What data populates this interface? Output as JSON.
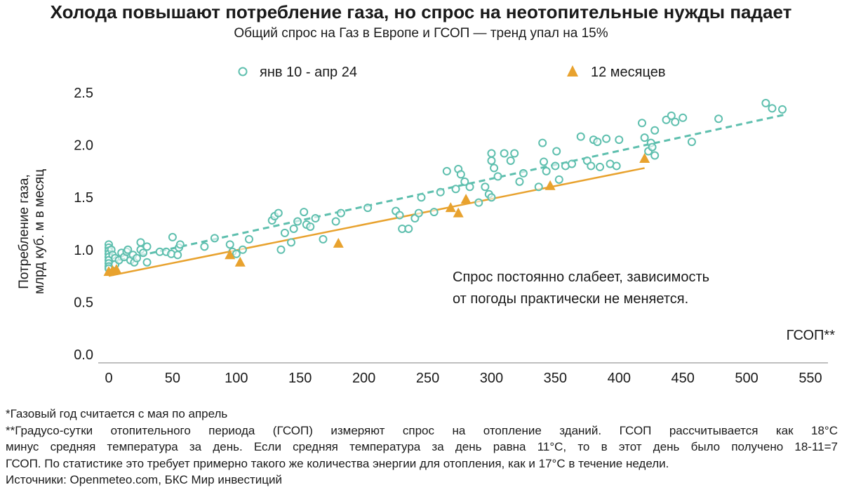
{
  "title": "Холода повышают потребление газа, но спрос на неотопительные нужды падает",
  "subtitle": "Общий спрос на Газ в Европе и ГСОП — тренд упал на 15%",
  "footnotes": {
    "line1": "*Газовый год считается с мая по апрель",
    "line2": "**Градусо-сутки отопительного периода (ГСОП) измеряют спрос на отопление зданий. ГСОП рассчитывается как 18°C",
    "line3": "минус средняя температура за день. Если средняя температура за день равна 11°C, то в этот день было получено 18-11=7",
    "line4": "ГСОП. По статистике это требует примерно такого же количества энергии для отопления, как и 17°C в течение недели.",
    "line5": "Источники: Openmeteo.com, БКС Мир инвестиций"
  },
  "colors": {
    "teal": "#5ebfae",
    "orange": "#e8a22e",
    "axis": "#bfbfbf",
    "text": "#1a1a1a"
  },
  "chart_data": {
    "type": "scatter",
    "xlabel": "ГСОП**",
    "ylabel_line1": "Потребление газа,",
    "ylabel_line2": "млрд куб. м в месяц",
    "xlim": [
      0,
      550
    ],
    "ylim": [
      0,
      2.5
    ],
    "x_ticks": [
      0,
      50,
      100,
      150,
      200,
      250,
      300,
      350,
      400,
      450,
      500,
      550
    ],
    "y_ticks": [
      0.0,
      0.5,
      1.0,
      1.5,
      2.0,
      2.5
    ],
    "y_tick_labels": [
      "0.0",
      "0.5",
      "1.0",
      "1.5",
      "2.0",
      "2.5"
    ],
    "grid": false,
    "legend_position": "top",
    "annotation_line1": "Спрос постоянно слабеет, зависимость",
    "annotation_line2": "от погоды практически не меняется.",
    "series": [
      {
        "name": "янв 10 - апр 24",
        "marker": "open-circle",
        "color": "#5ebfae",
        "points": [
          [
            0,
            1.05
          ],
          [
            0,
            1.02
          ],
          [
            0,
            0.99
          ],
          [
            0,
            0.96
          ],
          [
            0,
            0.93
          ],
          [
            0,
            0.9
          ],
          [
            0,
            0.87
          ],
          [
            0,
            0.84
          ],
          [
            0,
            0.82
          ],
          [
            2,
            1.0
          ],
          [
            3,
            0.95
          ],
          [
            5,
            0.92
          ],
          [
            5,
            0.86
          ],
          [
            8,
            0.9
          ],
          [
            10,
            0.97
          ],
          [
            12,
            0.93
          ],
          [
            14,
            0.98
          ],
          [
            15,
            1.0
          ],
          [
            17,
            0.9
          ],
          [
            19,
            0.95
          ],
          [
            20,
            0.88
          ],
          [
            22,
            0.92
          ],
          [
            25,
            1.07
          ],
          [
            25,
            1.0
          ],
          [
            27,
            0.97
          ],
          [
            30,
            1.03
          ],
          [
            30,
            0.88
          ],
          [
            40,
            0.98
          ],
          [
            45,
            0.98
          ],
          [
            49,
            0.96
          ],
          [
            50,
            1.12
          ],
          [
            54,
            0.95
          ],
          [
            55,
            1.02
          ],
          [
            56,
            1.05
          ],
          [
            75,
            1.03
          ],
          [
            83,
            1.11
          ],
          [
            95,
            1.05
          ],
          [
            97,
            0.98
          ],
          [
            100,
            0.96
          ],
          [
            105,
            1.0
          ],
          [
            110,
            1.1
          ],
          [
            128,
            1.28
          ],
          [
            130,
            1.32
          ],
          [
            133,
            1.35
          ],
          [
            135,
            1.0
          ],
          [
            138,
            1.16
          ],
          [
            143,
            1.07
          ],
          [
            145,
            1.2
          ],
          [
            148,
            1.27
          ],
          [
            153,
            1.36
          ],
          [
            155,
            1.24
          ],
          [
            158,
            1.22
          ],
          [
            162,
            1.3
          ],
          [
            168,
            1.1
          ],
          [
            178,
            1.27
          ],
          [
            182,
            1.35
          ],
          [
            203,
            1.4
          ],
          [
            225,
            1.37
          ],
          [
            228,
            1.33
          ],
          [
            230,
            1.2
          ],
          [
            235,
            1.2
          ],
          [
            240,
            1.3
          ],
          [
            243,
            1.35
          ],
          [
            245,
            1.5
          ],
          [
            255,
            1.36
          ],
          [
            260,
            1.55
          ],
          [
            265,
            1.75
          ],
          [
            272,
            1.58
          ],
          [
            274,
            1.77
          ],
          [
            276,
            1.72
          ],
          [
            279,
            1.65
          ],
          [
            283,
            1.6
          ],
          [
            290,
            1.45
          ],
          [
            295,
            1.6
          ],
          [
            298,
            1.53
          ],
          [
            300,
            1.5
          ],
          [
            300,
            1.85
          ],
          [
            300,
            1.92
          ],
          [
            302,
            1.78
          ],
          [
            305,
            1.7
          ],
          [
            310,
            1.92
          ],
          [
            315,
            1.85
          ],
          [
            318,
            1.92
          ],
          [
            322,
            1.65
          ],
          [
            325,
            1.73
          ],
          [
            337,
            1.6
          ],
          [
            340,
            2.02
          ],
          [
            341,
            1.84
          ],
          [
            343,
            1.75
          ],
          [
            350,
            1.8
          ],
          [
            351,
            1.94
          ],
          [
            353,
            1.67
          ],
          [
            358,
            1.8
          ],
          [
            363,
            1.82
          ],
          [
            370,
            2.08
          ],
          [
            375,
            1.85
          ],
          [
            378,
            1.8
          ],
          [
            380,
            2.05
          ],
          [
            383,
            2.03
          ],
          [
            385,
            1.79
          ],
          [
            390,
            2.06
          ],
          [
            393,
            1.82
          ],
          [
            398,
            1.8
          ],
          [
            400,
            2.05
          ],
          [
            418,
            2.21
          ],
          [
            420,
            2.07
          ],
          [
            423,
            1.94
          ],
          [
            425,
            2.02
          ],
          [
            426,
            1.98
          ],
          [
            428,
            2.14
          ],
          [
            428,
            1.9
          ],
          [
            437,
            2.24
          ],
          [
            441,
            2.28
          ],
          [
            444,
            2.22
          ],
          [
            450,
            2.26
          ],
          [
            457,
            2.03
          ],
          [
            478,
            2.25
          ],
          [
            515,
            2.4
          ],
          [
            520,
            2.35
          ],
          [
            528,
            2.34
          ]
        ],
        "trend": {
          "x": [
            0,
            530
          ],
          "y": [
            0.88,
            2.29
          ]
        }
      },
      {
        "name": "12 месяцев",
        "marker": "filled-triangle",
        "color": "#e8a22e",
        "points": [
          [
            0,
            0.79
          ],
          [
            3,
            0.8
          ],
          [
            6,
            0.81
          ],
          [
            95,
            0.95
          ],
          [
            103,
            0.88
          ],
          [
            180,
            1.06
          ],
          [
            268,
            1.4
          ],
          [
            274,
            1.35
          ],
          [
            280,
            1.48
          ],
          [
            346,
            1.61
          ],
          [
            420,
            1.87
          ]
        ],
        "trend": {
          "x": [
            0,
            420
          ],
          "y": [
            0.75,
            1.78
          ]
        }
      }
    ]
  }
}
